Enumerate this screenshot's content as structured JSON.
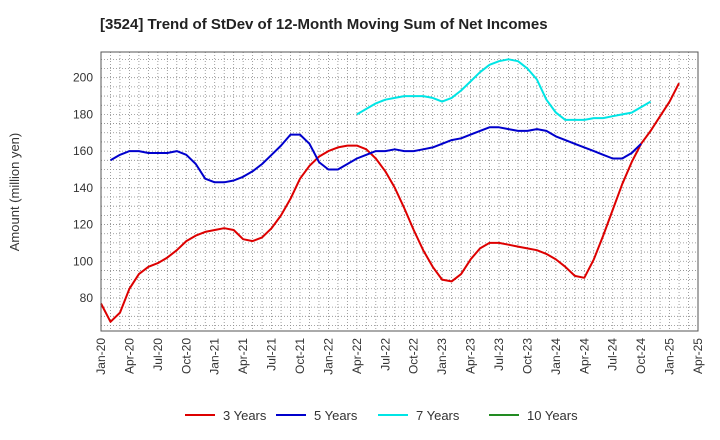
{
  "chart_data": {
    "type": "line",
    "title": "[3524]  Trend of StDev of 12-Month Moving Sum of Net Incomes",
    "xlabel": "",
    "ylabel": "Amount (million yen)",
    "ylim": [
      62,
      214
    ],
    "yticks": [
      80,
      100,
      120,
      140,
      160,
      180,
      200
    ],
    "grid": true,
    "legend_position": "bottom",
    "x_tick_labels": [
      "Jan-20",
      "Apr-20",
      "Jul-20",
      "Oct-20",
      "Jan-21",
      "Apr-21",
      "Jul-21",
      "Oct-21",
      "Jan-22",
      "Apr-22",
      "Jul-22",
      "Oct-22",
      "Jan-23",
      "Apr-23",
      "Jul-23",
      "Oct-23",
      "Jan-24",
      "Apr-24",
      "Jul-24",
      "Oct-24",
      "Jan-25",
      "Apr-25"
    ],
    "x_unit": "month",
    "x_start": "Jan-20",
    "series": [
      {
        "name": "3 Years",
        "color": "#dd0000",
        "start": "Jan-20",
        "values": [
          77,
          67,
          72,
          85,
          93,
          97,
          99,
          102,
          106,
          111,
          114,
          116,
          117,
          118,
          117,
          112,
          111,
          113,
          118,
          125,
          134,
          145,
          152,
          157,
          160,
          162,
          163,
          163,
          161,
          156,
          149,
          140,
          129,
          117,
          106,
          97,
          90,
          89,
          93,
          101,
          107,
          110,
          110,
          109,
          108,
          107,
          106,
          104,
          101,
          97,
          92,
          91,
          101,
          114,
          128,
          142,
          154,
          164,
          171,
          179,
          187,
          197
        ]
      },
      {
        "name": "5 Years",
        "color": "#0000cc",
        "start": "Feb-20",
        "values": [
          155,
          158,
          160,
          160,
          159,
          159,
          159,
          160,
          158,
          153,
          145,
          143,
          143,
          144,
          146,
          149,
          153,
          158,
          163,
          169,
          169,
          164,
          154,
          150,
          150,
          153,
          156,
          158,
          160,
          160,
          161,
          160,
          160,
          161,
          162,
          164,
          166,
          167,
          169,
          171,
          173,
          173,
          172,
          171,
          171,
          172,
          171,
          168,
          166,
          164,
          162,
          160,
          158,
          156,
          156,
          159,
          164
        ]
      },
      {
        "name": "7 Years",
        "color": "#00e5e5",
        "start": "Apr-22",
        "values": [
          180,
          183,
          186,
          188,
          189,
          190,
          190,
          190,
          189,
          187,
          189,
          193,
          198,
          203,
          207,
          209,
          210,
          209,
          205,
          199,
          188,
          181,
          177,
          177,
          177,
          178,
          178,
          179,
          180,
          181,
          184,
          187
        ]
      },
      {
        "name": "10 Years",
        "color": "#228b22",
        "start": "Jan-20",
        "values": []
      }
    ]
  }
}
